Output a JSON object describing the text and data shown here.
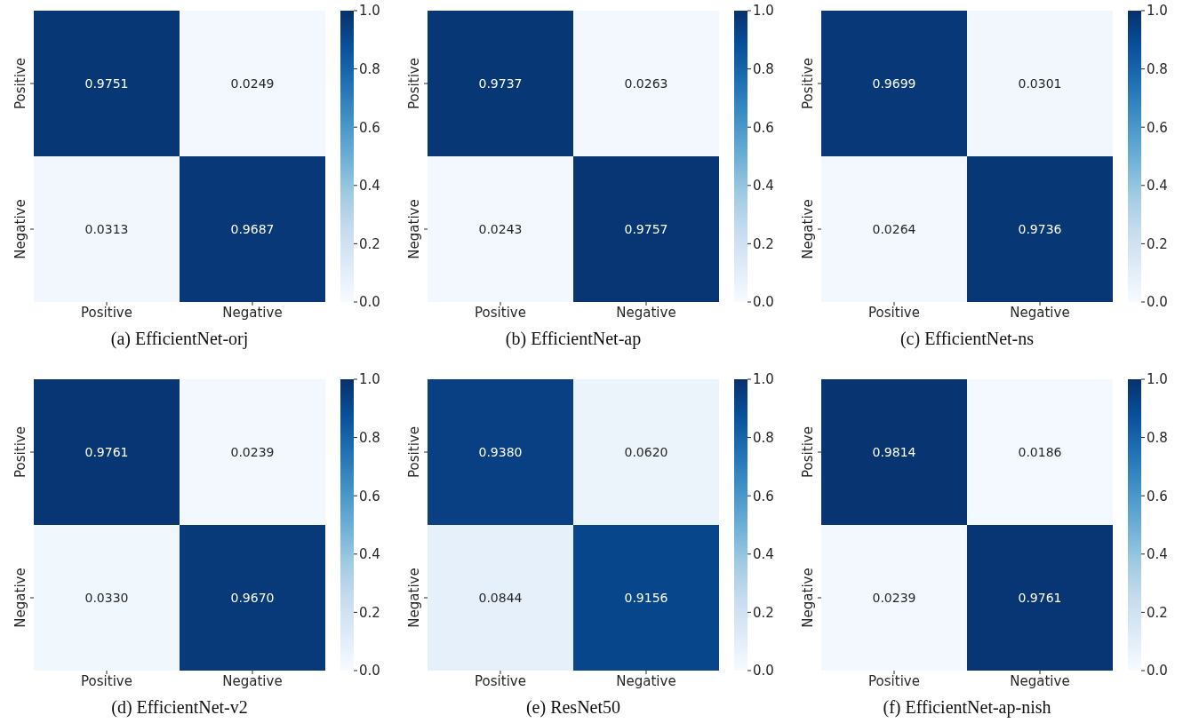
{
  "chart_data": [
    {
      "type": "heatmap",
      "title": "(a) EfficientNet-orj",
      "categories": [
        "Positive",
        "Negative"
      ],
      "y_categories": [
        "Positive",
        "Negative"
      ],
      "cells": [
        [
          0.9751,
          0.0249
        ],
        [
          0.0313,
          0.9687
        ]
      ],
      "data_labels": true,
      "clim": [
        0,
        1
      ],
      "cticks": [
        {
          "value": 0,
          "label": "0.0"
        },
        {
          "value": 0.2,
          "label": "0.2"
        },
        {
          "value": 0.4,
          "label": "0.4"
        },
        {
          "value": 0.6,
          "label": "0.6"
        },
        {
          "value": 0.8,
          "label": "0.8"
        },
        {
          "value": 1,
          "label": "1.0"
        }
      ]
    },
    {
      "type": "heatmap",
      "title": "(b) EfficientNet-ap",
      "categories": [
        "Positive",
        "Negative"
      ],
      "y_categories": [
        "Positive",
        "Negative"
      ],
      "cells": [
        [
          0.9737,
          0.0263
        ],
        [
          0.0243,
          0.9757
        ]
      ],
      "data_labels": true,
      "clim": [
        0,
        1
      ],
      "cticks": [
        {
          "value": 0,
          "label": "0.0"
        },
        {
          "value": 0.2,
          "label": "0.2"
        },
        {
          "value": 0.4,
          "label": "0.4"
        },
        {
          "value": 0.6,
          "label": "0.6"
        },
        {
          "value": 0.8,
          "label": "0.8"
        },
        {
          "value": 1,
          "label": "1.0"
        }
      ]
    },
    {
      "type": "heatmap",
      "title": "(c) EfficientNet-ns",
      "categories": [
        "Positive",
        "Negative"
      ],
      "y_categories": [
        "Positive",
        "Negative"
      ],
      "cells": [
        [
          0.9699,
          0.0301
        ],
        [
          0.0264,
          0.9736
        ]
      ],
      "data_labels": true,
      "clim": [
        0,
        1
      ],
      "cticks": [
        {
          "value": 0,
          "label": "0.0"
        },
        {
          "value": 0.2,
          "label": "0.2"
        },
        {
          "value": 0.4,
          "label": "0.4"
        },
        {
          "value": 0.6,
          "label": "0.6"
        },
        {
          "value": 0.8,
          "label": "0.8"
        },
        {
          "value": 1,
          "label": "1.0"
        }
      ]
    },
    {
      "type": "heatmap",
      "title": "(d) EfficientNet-v2",
      "categories": [
        "Positive",
        "Negative"
      ],
      "y_categories": [
        "Positive",
        "Negative"
      ],
      "cells": [
        [
          0.9761,
          0.0239
        ],
        [
          0.033,
          0.967
        ]
      ],
      "cell_labels": [
        [
          "0.9761",
          "0.0239"
        ],
        [
          "0.0330",
          "0.9670"
        ]
      ],
      "data_labels": true,
      "clim": [
        0,
        1
      ],
      "cticks": [
        {
          "value": 0,
          "label": "0.0"
        },
        {
          "value": 0.2,
          "label": "0.2"
        },
        {
          "value": 0.4,
          "label": "0.4"
        },
        {
          "value": 0.6,
          "label": "0.6"
        },
        {
          "value": 0.8,
          "label": "0.8"
        },
        {
          "value": 1,
          "label": "1.0"
        }
      ]
    },
    {
      "type": "heatmap",
      "title": "(e) ResNet50",
      "categories": [
        "Positive",
        "Negative"
      ],
      "y_categories": [
        "Positive",
        "Negative"
      ],
      "cells": [
        [
          0.938,
          0.062
        ],
        [
          0.0844,
          0.9156
        ]
      ],
      "cell_labels": [
        [
          "0.9380",
          "0.0620"
        ],
        [
          "0.0844",
          "0.9156"
        ]
      ],
      "data_labels": true,
      "clim": [
        0,
        1
      ],
      "cticks": [
        {
          "value": 0,
          "label": "0.0"
        },
        {
          "value": 0.2,
          "label": "0.2"
        },
        {
          "value": 0.4,
          "label": "0.4"
        },
        {
          "value": 0.6,
          "label": "0.6"
        },
        {
          "value": 0.8,
          "label": "0.8"
        },
        {
          "value": 1,
          "label": "1.0"
        }
      ]
    },
    {
      "type": "heatmap",
      "title": "(f) EfficientNet-ap-nish",
      "categories": [
        "Positive",
        "Negative"
      ],
      "y_categories": [
        "Positive",
        "Negative"
      ],
      "cells": [
        [
          0.9814,
          0.0186
        ],
        [
          0.0239,
          0.9761
        ]
      ],
      "data_labels": true,
      "clim": [
        0,
        1
      ],
      "cticks": [
        {
          "value": 0,
          "label": "0.0"
        },
        {
          "value": 0.2,
          "label": "0.2"
        },
        {
          "value": 0.4,
          "label": "0.4"
        },
        {
          "value": 0.6,
          "label": "0.6"
        },
        {
          "value": 0.8,
          "label": "0.8"
        },
        {
          "value": 1,
          "label": "1.0"
        }
      ]
    }
  ]
}
